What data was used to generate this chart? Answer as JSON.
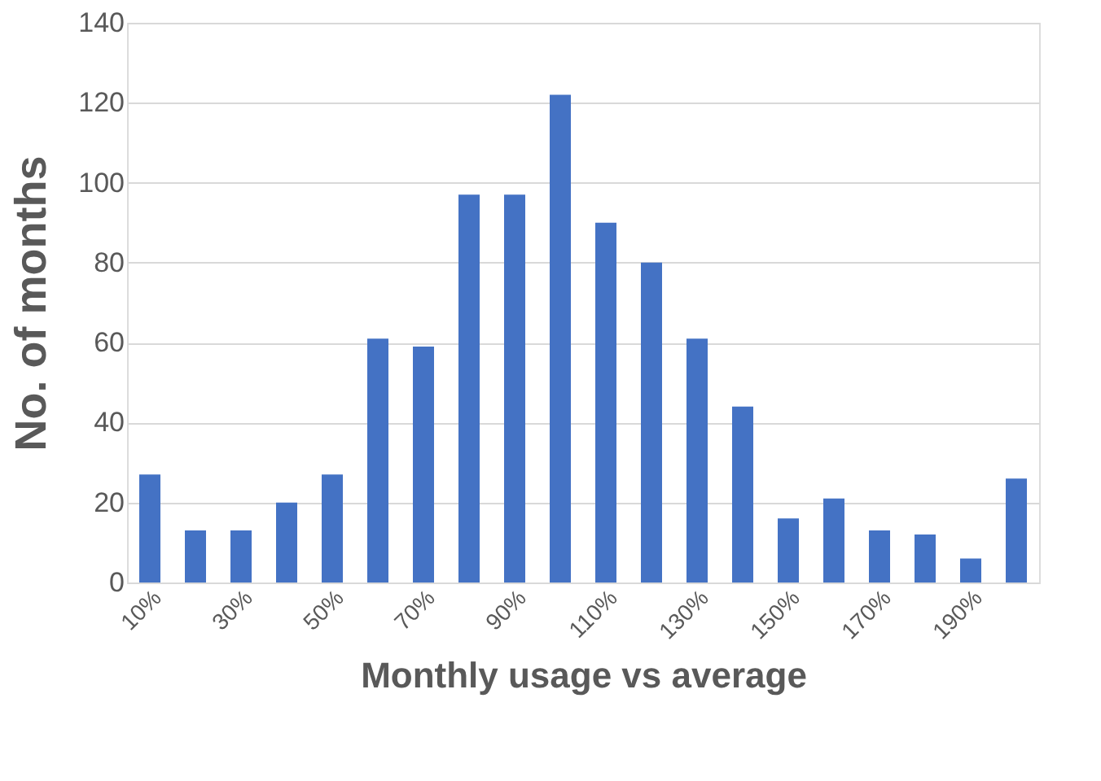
{
  "chart_data": {
    "type": "bar",
    "xlabel": "Monthly usage vs average",
    "ylabel": "No. of months",
    "categories": [
      "10%",
      null,
      "30%",
      null,
      "50%",
      null,
      "70%",
      null,
      "90%",
      null,
      "110%",
      null,
      "130%",
      null,
      "150%",
      null,
      "170%",
      null,
      "190%",
      null
    ],
    "values": [
      27,
      13,
      13,
      20,
      27,
      61,
      59,
      97,
      97,
      122,
      90,
      80,
      61,
      44,
      16,
      21,
      13,
      12,
      6,
      26
    ],
    "color": "#4472c4",
    "ylim": [
      0,
      140
    ],
    "yticks": [
      0,
      20,
      40,
      60,
      80,
      100,
      120,
      140
    ],
    "grid": "y"
  }
}
